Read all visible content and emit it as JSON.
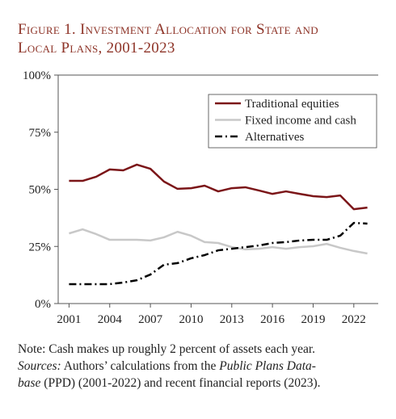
{
  "chart_data": {
    "type": "line",
    "title": [
      "Figure 1. Investment Allocation for State and",
      "Local Plans, 2001-2023"
    ],
    "x": [
      2001,
      2002,
      2003,
      2004,
      2005,
      2006,
      2007,
      2008,
      2009,
      2010,
      2011,
      2012,
      2013,
      2014,
      2015,
      2016,
      2017,
      2018,
      2019,
      2020,
      2021,
      2022,
      2023
    ],
    "series": [
      {
        "name": "Traditional equities",
        "color": "#7b1518",
        "dash": "solid",
        "values": [
          53.7,
          53.7,
          55.5,
          58.7,
          58.3,
          60.8,
          59,
          53.4,
          50.2,
          50.5,
          51.6,
          49.1,
          50.5,
          50.9,
          49.5,
          48,
          49.1,
          48,
          47,
          46.6,
          47.3,
          41.3,
          42
        ]
      },
      {
        "name": "Fixed income and cash",
        "color": "#c8c8c8",
        "dash": "solid",
        "values": [
          30.7,
          32.5,
          30.4,
          27.9,
          27.9,
          27.9,
          27.6,
          29,
          31.4,
          29.7,
          26.9,
          26.5,
          24.7,
          23.7,
          24,
          24.7,
          24,
          24.7,
          25.1,
          26.1,
          24.4,
          23,
          21.9
        ]
      },
      {
        "name": "Alternatives",
        "color": "#000000",
        "dash": "dash-dot",
        "values": [
          8.5,
          8.5,
          8.5,
          8.5,
          9.2,
          10.2,
          12.7,
          17,
          17.7,
          19.8,
          21.2,
          23.3,
          24,
          24.7,
          25.4,
          26.5,
          26.9,
          27.6,
          27.9,
          27.9,
          29.7,
          35.3,
          35
        ]
      }
    ],
    "xlim": [
      2000.2,
      2023.8
    ],
    "xticks": [
      2001,
      2004,
      2007,
      2010,
      2013,
      2016,
      2019,
      2022
    ],
    "ylim": [
      0,
      100
    ],
    "yticks": [
      {
        "value": 0,
        "label": "0%"
      },
      {
        "value": 25,
        "label": "25%"
      },
      {
        "value": 50,
        "label": "50%"
      },
      {
        "value": 75,
        "label": "75%"
      },
      {
        "value": 100,
        "label": "100%"
      }
    ],
    "grid": false,
    "legend": "top-right",
    "footnote_lines": [
      [
        {
          "text": "Note: Cash makes up roughly 2 percent of assets each year.",
          "italic": false
        }
      ],
      [
        {
          "text": "Sources:",
          "italic": true
        },
        {
          "text": " Authors’ calculations from the ",
          "italic": false
        },
        {
          "text": "Public Plans Data-",
          "italic": true
        }
      ],
      [
        {
          "text": "base",
          "italic": true
        },
        {
          "text": " (PPD) (2001-2022) and recent financial reports (2023).",
          "italic": false
        }
      ]
    ]
  }
}
